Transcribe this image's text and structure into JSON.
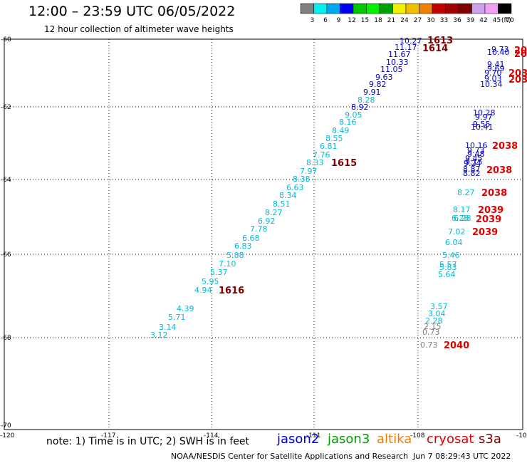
{
  "title": "12:00 – 23:59 UTC 06/05/2022",
  "subtitle": "12 hour collection of altimeter wave heights",
  "colorbar": {
    "colors": [
      "#808080",
      "#00f0f0",
      "#00a8f0",
      "#0000f0",
      "#00c800",
      "#00f000",
      "#00a000",
      "#f0f000",
      "#f0c000",
      "#f08000",
      "#c00000",
      "#a00000",
      "#800000",
      "#d0a0f0",
      "#f0a0f0",
      "#000000"
    ],
    "labels": [
      "3",
      "6",
      "9",
      "12",
      "15",
      "18",
      "21",
      "24",
      "27",
      "30",
      "33",
      "36",
      "39",
      "42",
      "45",
      "70",
      "(ft)"
    ]
  },
  "axes": {
    "lat_labels": [
      "-60",
      "-62",
      "-64",
      "-66",
      "-68",
      "-70"
    ],
    "lon_labels": [
      "-120",
      "-117",
      "-114",
      "-111",
      "-108",
      "-10"
    ]
  },
  "tracks": {
    "jason3_cyan": {
      "color": "#00bcd8",
      "values": [
        "3.12",
        "3.14",
        "5.71",
        "4.39",
        "4.94",
        "5.95",
        "5.37",
        "7.10",
        "5.88",
        "6.83",
        "6.68",
        "7.78",
        "6.92",
        "8.27",
        "8.51",
        "8.34",
        "6.63",
        "8.38",
        "7.97",
        "8.33",
        "7.76",
        "6.81",
        "8.55",
        "8.49",
        "8.16",
        "9.05",
        "8.28"
      ]
    },
    "jason2_blue": {
      "color": "#0000c8",
      "values": [
        "8.92",
        "9.91",
        "9.82",
        "9.63",
        "11.05",
        "10.33",
        "11.67",
        "11.17",
        "10.27"
      ]
    },
    "east_blue": {
      "color": "#0000c8",
      "values": [
        "9.73",
        "10.40",
        "9.41",
        "9.69",
        "9.70",
        "9.03",
        "10.34",
        "10.28",
        "9.97",
        "9.55",
        "10.41",
        "10.16",
        "9.73",
        "9.48",
        "9.45",
        "9.15",
        "9.24",
        "8.87",
        "8.82"
      ]
    },
    "east_cyan": {
      "color": "#00bcd8",
      "values": [
        "8.27",
        "8.17",
        "6.28",
        "6.28",
        "7.02",
        "6.04",
        "5.46",
        "5.57",
        "5.83",
        "5.64",
        "3.57",
        "3.04",
        "2.28"
      ]
    },
    "east_gray": {
      "color": "#808080",
      "values": [
        "2.15",
        "0.73",
        "0.73"
      ]
    }
  },
  "time_labels_dark": [
    "1613",
    "1614",
    "1615",
    "1616"
  ],
  "time_labels_red": [
    "20",
    "20",
    "203",
    "203",
    "2038",
    "2038",
    "2038",
    "2039",
    "2039",
    "2039",
    "2040"
  ],
  "note": "note: 1) Time is in UTC; 2) SWH is in feet",
  "legend": [
    {
      "name": "jason2",
      "color": "#0000e0"
    },
    {
      "name": "jason3",
      "color": "#00a000"
    },
    {
      "name": "altika",
      "color": "#f08000"
    },
    {
      "name": "cryosat",
      "color": "#e00000"
    },
    {
      "name": "s3a",
      "color": "#800000"
    }
  ],
  "footer": {
    "credit": "NOAA/NESDIS Center for Satellite Applications and Research",
    "timestamp": "Jun  7 08:29:43 UTC 2022"
  }
}
